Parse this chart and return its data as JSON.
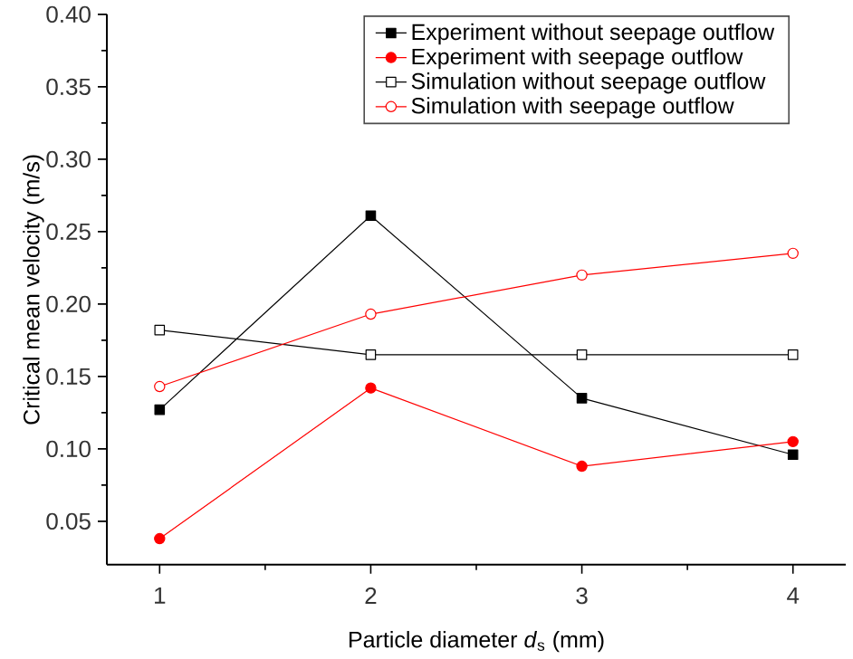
{
  "chart_data": {
    "type": "line",
    "xlabel": "Particle diameter *d*$_{s}$  (mm)",
    "ylabel": "Critical mean velocity (m/s)",
    "x": [
      1,
      2,
      3,
      4
    ],
    "xlim": [
      0.75,
      4.25
    ],
    "xticks": [
      1,
      2,
      3,
      4
    ],
    "ylim": [
      0.02,
      0.4
    ],
    "yticks": [
      0.05,
      {
        "value": 0.1,
        "label": "0.10"
      },
      0.15,
      {
        "value": 0.2,
        "label": "0.20"
      },
      0.25,
      {
        "value": 0.3,
        "label": "0.30"
      },
      0.35,
      {
        "value": 0.4,
        "label": "0.40"
      }
    ],
    "legend": "top right",
    "line_style": "solid",
    "series": [
      {
        "name": "Experiment without seepage outflow",
        "color": "#000000",
        "marker": "square",
        "values": [
          0.127,
          0.261,
          0.135,
          0.096
        ]
      },
      {
        "name": "Experiment with seepage outflow",
        "color": "#ff0000",
        "marker": "circle",
        "values": [
          0.038,
          0.142,
          0.088,
          0.105
        ]
      },
      {
        "name": "Simulation without seepage outflow",
        "color": "#000000",
        "marker": "square",
        "values": [
          0.182,
          0.165,
          0.165,
          0.165
        ]
      },
      {
        "name": "Simulation with seepage outflow",
        "color": "#ff0000",
        "marker": "circle",
        "values": [
          0.143,
          0.193,
          0.22,
          0.235
        ]
      }
    ]
  }
}
